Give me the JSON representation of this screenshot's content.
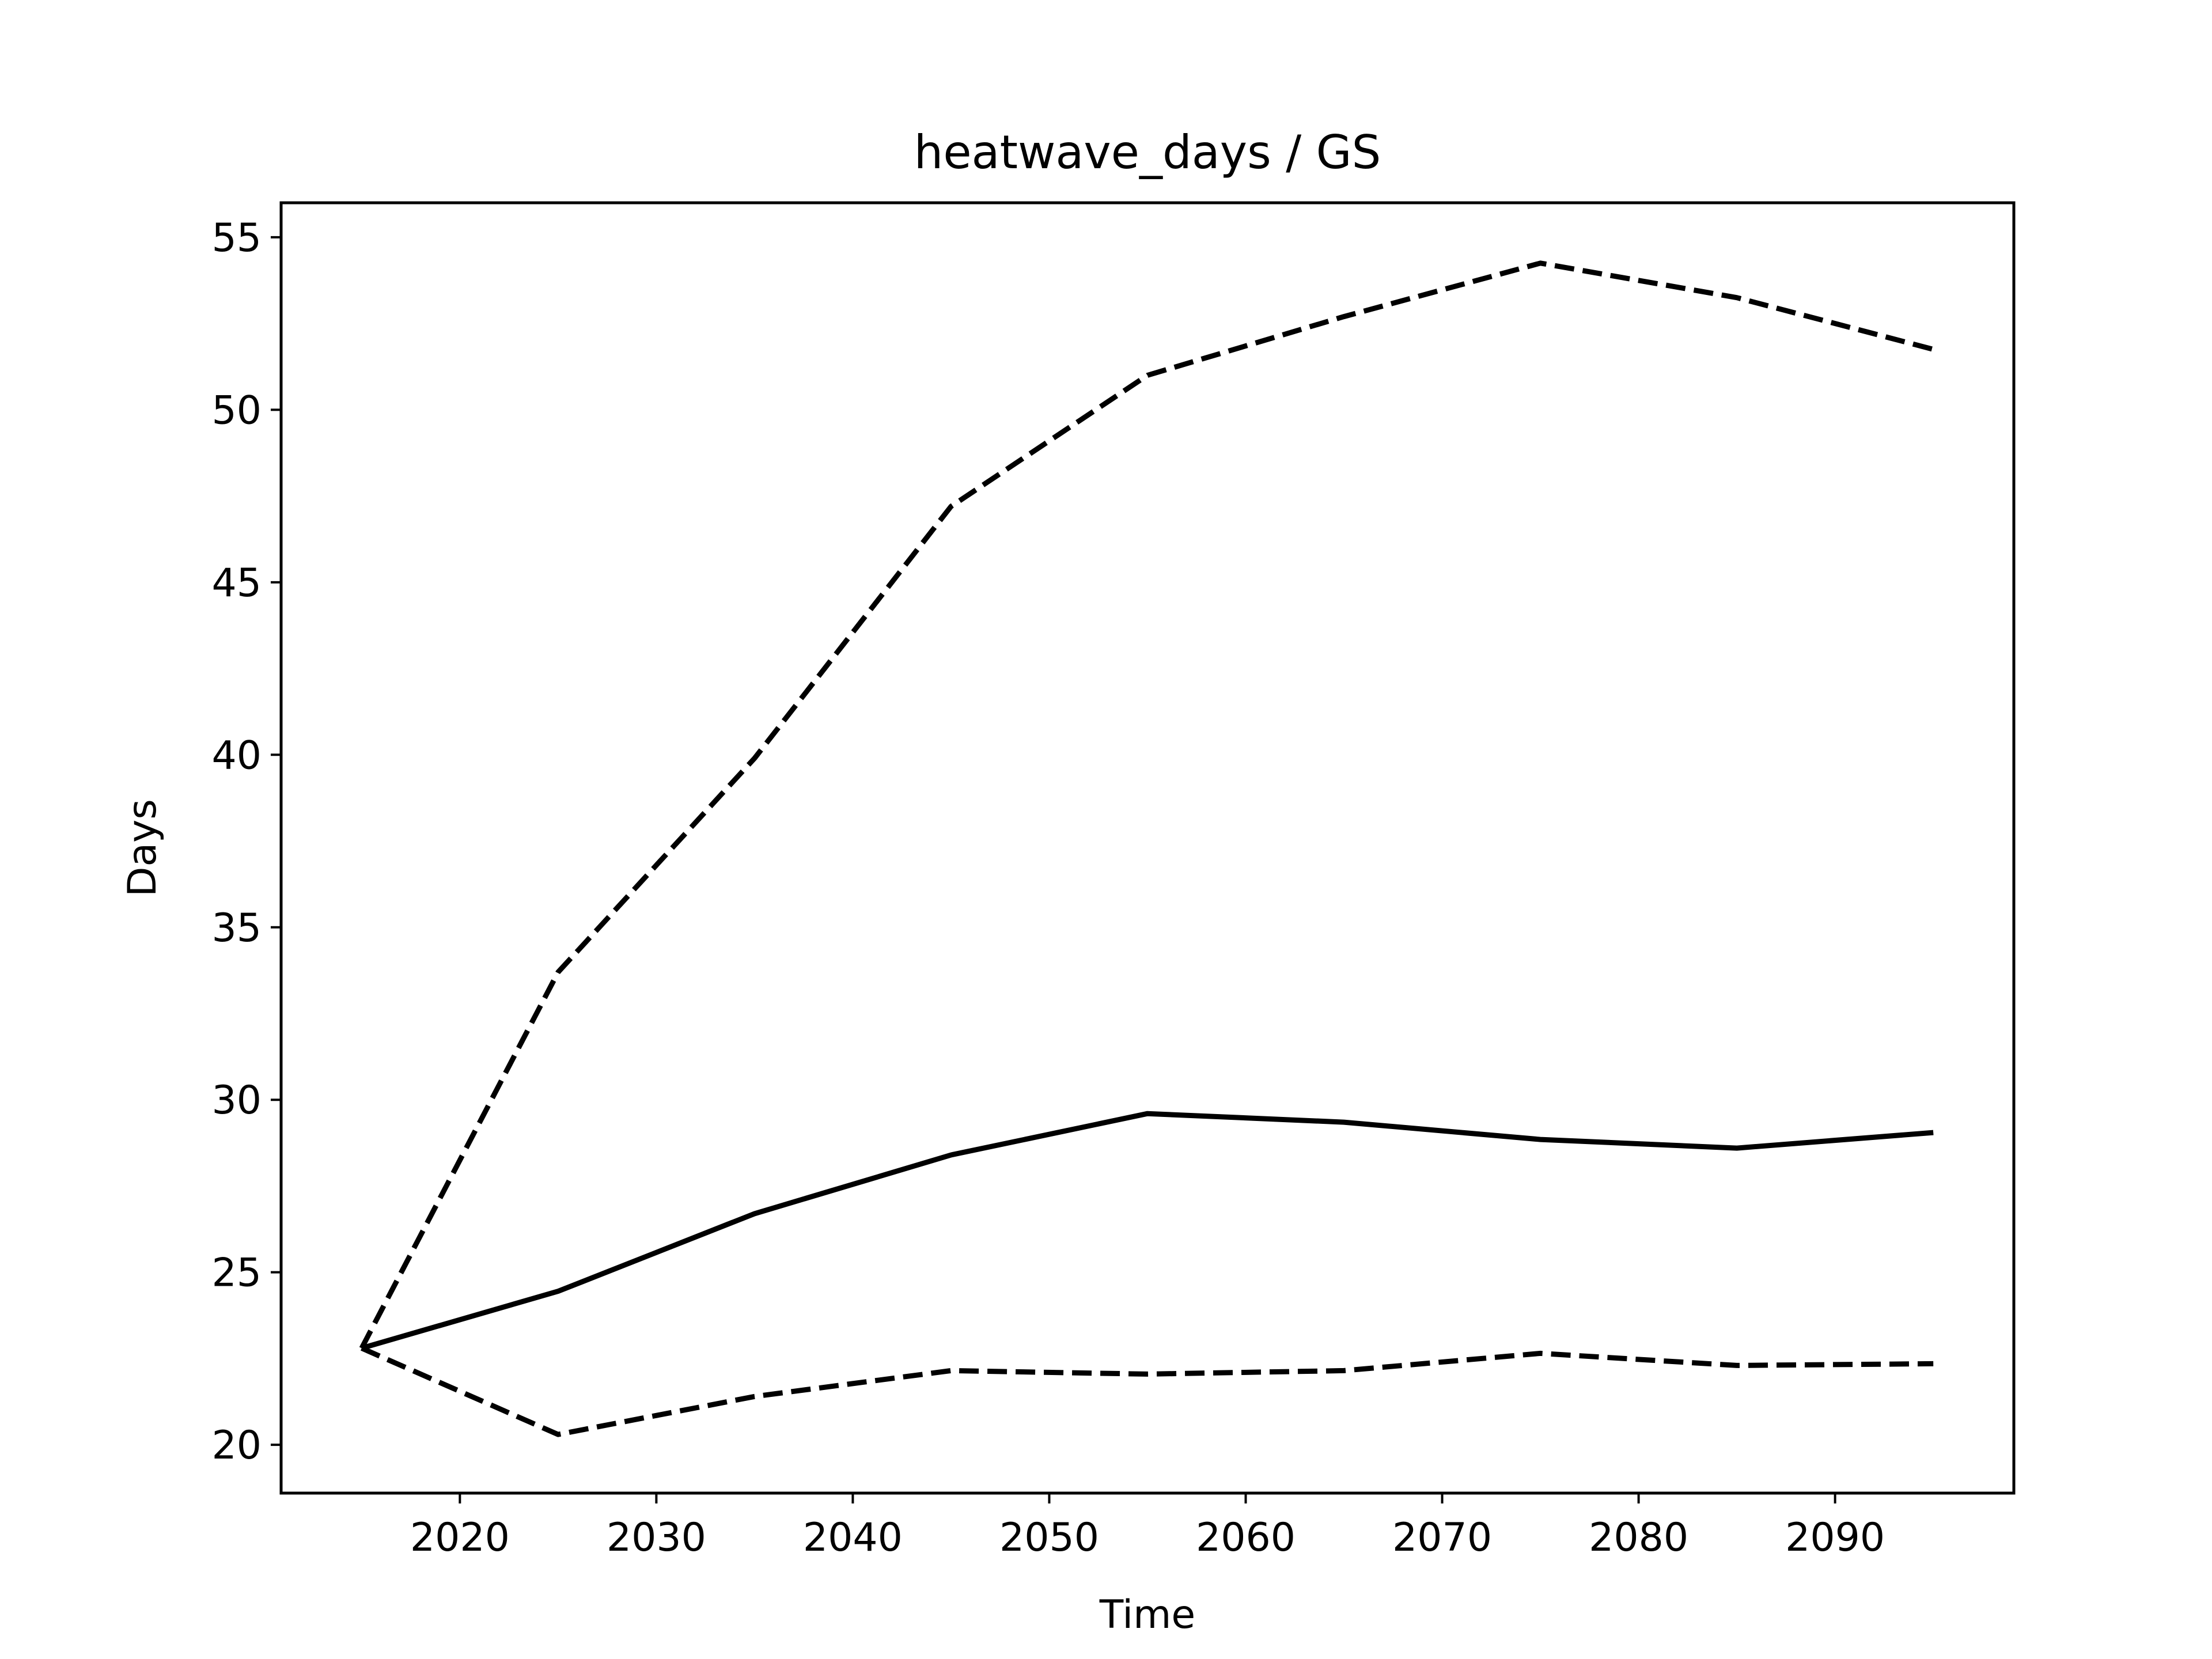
{
  "chart_data": {
    "type": "line",
    "title": "heatwave_days / GS",
    "xlabel": "Time",
    "ylabel": "Days",
    "x": [
      2015,
      2025,
      2035,
      2045,
      2055,
      2065,
      2075,
      2085,
      2095
    ],
    "series": [
      {
        "style": "solid",
        "values": [
          22.8,
          24.45,
          26.7,
          28.4,
          29.6,
          29.35,
          28.85,
          28.6,
          29.05
        ]
      },
      {
        "style": "dashed",
        "values": [
          22.8,
          33.7,
          39.9,
          47.2,
          51.0,
          52.7,
          54.25,
          53.25,
          51.75
        ]
      },
      {
        "style": "dashed",
        "values": [
          22.8,
          20.3,
          21.4,
          22.15,
          22.05,
          22.15,
          22.65,
          22.3,
          22.35
        ]
      }
    ],
    "xlim": [
      2010.9,
      2099.1
    ],
    "ylim": [
      18.6,
      56.0
    ],
    "xticks": [
      2020,
      2030,
      2040,
      2050,
      2060,
      2070,
      2080,
      2090
    ],
    "yticks": [
      20,
      25,
      30,
      35,
      40,
      45,
      50,
      55
    ],
    "grid": false,
    "line_color": "#000000"
  }
}
